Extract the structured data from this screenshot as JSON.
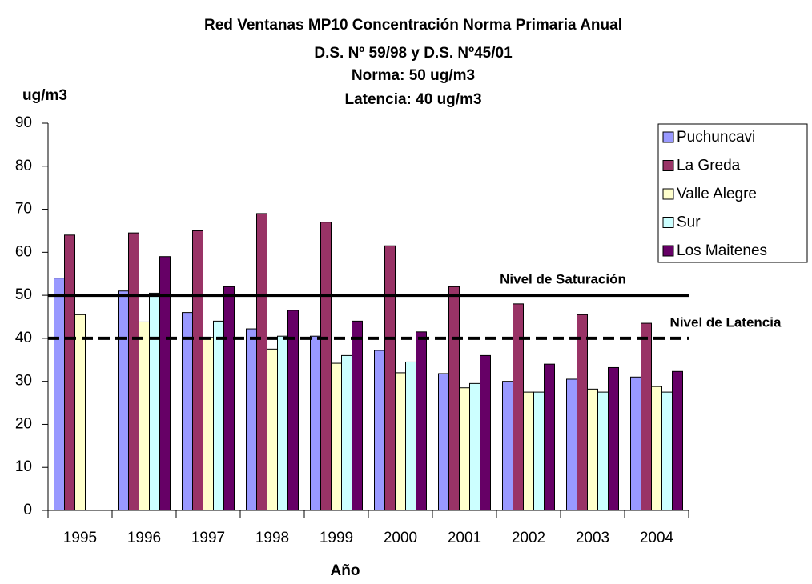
{
  "chart_data": {
    "type": "bar",
    "title": [
      "Red Ventanas MP10 Concentración Norma Primaria Anual",
      "D.S. Nº 59/98 y D.S. Nº45/01",
      "Norma: 50 ug/m3",
      "Latencia: 40 ug/m3"
    ],
    "y_label": "ug/m3",
    "x_label": "Año",
    "categories": [
      "1995",
      "1996",
      "1997",
      "1998",
      "1999",
      "2000",
      "2001",
      "2002",
      "2003",
      "2004"
    ],
    "series": [
      {
        "name": "Puchuncavi",
        "color": "#9999ff",
        "values": [
          54,
          51,
          46,
          42.2,
          40.5,
          37.2,
          31.8,
          30,
          30.5,
          31
        ]
      },
      {
        "name": "La Greda",
        "color": "#993366",
        "values": [
          64,
          64.5,
          65,
          69,
          67,
          61.5,
          52,
          48,
          45.5,
          43.5
        ]
      },
      {
        "name": "Valle Alegre",
        "color": "#ffffcc",
        "values": [
          45.5,
          43.8,
          40.2,
          37.5,
          34.2,
          32,
          28.5,
          27.5,
          28.2,
          28.8
        ]
      },
      {
        "name": "Sur",
        "color": "#ccffff",
        "values": [
          null,
          50.5,
          44,
          40.5,
          36,
          34.5,
          29.5,
          27.5,
          27.5,
          27.5
        ]
      },
      {
        "name": "Los Maitenes",
        "color": "#660066",
        "values": [
          null,
          59,
          52,
          46.5,
          44,
          41.5,
          36,
          34,
          33.2,
          32.3
        ]
      }
    ],
    "reference_lines": [
      {
        "value": 50,
        "label": "Nivel de Saturación",
        "style": "solid"
      },
      {
        "value": 40,
        "label": "Nivel de Latencia",
        "style": "dashed"
      }
    ],
    "ylim": [
      0,
      90
    ],
    "yticks": [
      0,
      10,
      20,
      30,
      40,
      50,
      60,
      70,
      80,
      90
    ],
    "grid": false,
    "legend": "right"
  }
}
